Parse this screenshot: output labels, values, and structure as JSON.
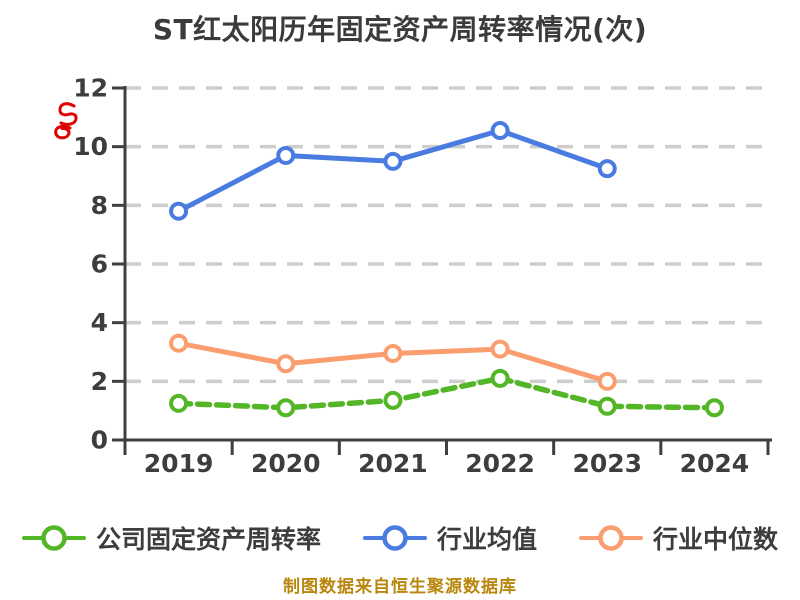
{
  "title": "ST红太阳历年固定资产周转率情况(次)",
  "caption": "制图数据来自恒生聚源数据库",
  "colors": {
    "background": "#ffffff",
    "title_text": "#3b3b3b",
    "axis_text": "#3d3d3d",
    "axis_line": "#3f3f3f",
    "gridline": "#cdcdcd",
    "caption_text": "#b8860b",
    "red_mark": "#e00000",
    "marker_fill": "#ffffff"
  },
  "red_mark": {
    "icon": "red-scribble-mark"
  },
  "chart_data": {
    "type": "line",
    "title": "ST红太阳历年固定资产周转率情况(次)",
    "categories": [
      "2019",
      "2020",
      "2021",
      "2022",
      "2023",
      "2024"
    ],
    "xlabel": "",
    "ylabel": "",
    "ylim": [
      0,
      12
    ],
    "yticks": [
      0,
      2,
      4,
      6,
      8,
      10,
      12
    ],
    "grid": "horizontal-dashed",
    "legend_position": "bottom",
    "series": [
      {
        "name": "公司固定资产周转率",
        "color": "#53b626",
        "line_style": "dashed",
        "marker": "circle-open",
        "values": [
          1.25,
          1.1,
          1.35,
          2.1,
          1.15,
          1.1
        ]
      },
      {
        "name": "行业均值",
        "color": "#4a7be0",
        "line_style": "solid",
        "marker": "circle-open",
        "values": [
          7.8,
          9.7,
          9.5,
          10.55,
          9.25,
          null
        ]
      },
      {
        "name": "行业中位数",
        "color": "#fa9d6f",
        "line_style": "solid",
        "marker": "circle-open",
        "values": [
          3.3,
          2.6,
          2.95,
          3.1,
          2.0,
          null
        ]
      }
    ]
  }
}
